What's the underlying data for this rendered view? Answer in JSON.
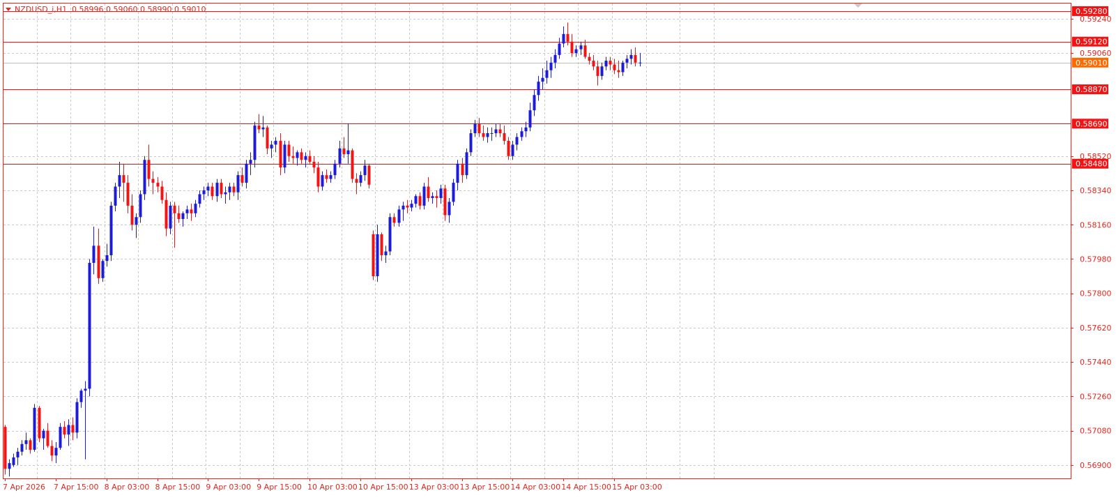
{
  "window": {
    "symbol_label": "NZDUSD_i,H1",
    "ohlc_label": "0.58996 0.59060 0.58990 0.59010"
  },
  "colors": {
    "frame": "#e5271d",
    "grid": "#c8c8c8",
    "bull": "#1c1cd6",
    "bear": "#f21414",
    "axis_text": "#e5271d",
    "price_tag_bg": "#f21414",
    "bid_line": "#bfbfbf",
    "bid_tag_bg": "#ff6a00"
  },
  "chart_data": {
    "type": "candlestick",
    "symbol": "NZDUSD_i",
    "timeframe": "H1",
    "ylim": [
      0.5683,
      0.5932
    ],
    "grid": true,
    "y_tick_labels": [
      "0.59240",
      "0.59060",
      "0.58520",
      "0.58340",
      "0.58160",
      "0.57980",
      "0.57800",
      "0.57620",
      "0.57440",
      "0.57260",
      "0.57080",
      "0.56900"
    ],
    "y_tick_values": [
      0.5924,
      0.5906,
      0.5852,
      0.5834,
      0.5816,
      0.5798,
      0.578,
      0.5762,
      0.5744,
      0.5726,
      0.5708,
      0.569
    ],
    "x_labels": [
      {
        "label": "7 Apr 2026",
        "bar": 0
      },
      {
        "label": "7 Apr 15:00",
        "bar": 12
      },
      {
        "label": "8 Apr 03:00",
        "bar": 24
      },
      {
        "label": "8 Apr 15:00",
        "bar": 36
      },
      {
        "label": "9 Apr 03:00",
        "bar": 48
      },
      {
        "label": "9 Apr 15:00",
        "bar": 60
      },
      {
        "label": "10 Apr 03:00",
        "bar": 72
      },
      {
        "label": "10 Apr 15:00",
        "bar": 84
      },
      {
        "label": "13 Apr 03:00",
        "bar": 96
      },
      {
        "label": "13 Apr 15:00",
        "bar": 108
      },
      {
        "label": "14 Apr 03:00",
        "bar": 120
      },
      {
        "label": "14 Apr 15:00",
        "bar": 132
      },
      {
        "label": "15 Apr 03:00",
        "bar": 144
      }
    ],
    "horizontal_levels": [
      {
        "value": 0.5928,
        "label": "0.59280"
      },
      {
        "value": 0.5912,
        "label": "0.59120"
      },
      {
        "value": 0.5887,
        "label": "0.58870"
      },
      {
        "value": 0.5869,
        "label": "0.58690"
      },
      {
        "value": 0.5848,
        "label": "0.58480"
      }
    ],
    "current_bid": {
      "value": 0.5901,
      "label": "0.59010"
    },
    "candles": [
      [
        0.571,
        0.5711,
        0.5685,
        0.5688
      ],
      [
        0.5688,
        0.5693,
        0.5684,
        0.5691
      ],
      [
        0.569,
        0.5696,
        0.5689,
        0.5694
      ],
      [
        0.5694,
        0.5699,
        0.569,
        0.5697
      ],
      [
        0.5697,
        0.5703,
        0.5695,
        0.5701
      ],
      [
        0.5701,
        0.5707,
        0.5698,
        0.5703
      ],
      [
        0.5703,
        0.5704,
        0.5696,
        0.5698
      ],
      [
        0.5698,
        0.5722,
        0.5697,
        0.572
      ],
      [
        0.572,
        0.5721,
        0.5702,
        0.5704
      ],
      [
        0.5704,
        0.5709,
        0.5698,
        0.5708
      ],
      [
        0.5708,
        0.5712,
        0.5699,
        0.57
      ],
      [
        0.57,
        0.5703,
        0.5692,
        0.5695
      ],
      [
        0.5695,
        0.5702,
        0.5691,
        0.5699
      ],
      [
        0.5699,
        0.5712,
        0.5698,
        0.571
      ],
      [
        0.571,
        0.5713,
        0.5704,
        0.5706
      ],
      [
        0.5706,
        0.5714,
        0.57,
        0.5711
      ],
      [
        0.5711,
        0.5715,
        0.5703,
        0.5707
      ],
      [
        0.5707,
        0.5725,
        0.5704,
        0.5723
      ],
      [
        0.5723,
        0.573,
        0.572,
        0.5729
      ],
      [
        0.5729,
        0.5734,
        0.5693,
        0.573
      ],
      [
        0.573,
        0.5798,
        0.5726,
        0.5796
      ],
      [
        0.5796,
        0.5815,
        0.579,
        0.5805
      ],
      [
        0.5805,
        0.5814,
        0.5785,
        0.5788
      ],
      [
        0.5788,
        0.5798,
        0.5786,
        0.5797
      ],
      [
        0.5797,
        0.5806,
        0.5794,
        0.58
      ],
      [
        0.58,
        0.5828,
        0.5797,
        0.5826
      ],
      [
        0.5826,
        0.5838,
        0.5823,
        0.5836
      ],
      [
        0.5836,
        0.5849,
        0.583,
        0.5842
      ],
      [
        0.5842,
        0.5848,
        0.5828,
        0.5838
      ],
      [
        0.5838,
        0.5842,
        0.5822,
        0.5826
      ],
      [
        0.5826,
        0.5832,
        0.5813,
        0.5816
      ],
      [
        0.5816,
        0.5822,
        0.5809,
        0.582
      ],
      [
        0.582,
        0.5834,
        0.5817,
        0.5832
      ],
      [
        0.5832,
        0.5852,
        0.5829,
        0.585
      ],
      [
        0.585,
        0.5858,
        0.5836,
        0.584
      ],
      [
        0.584,
        0.5844,
        0.5832,
        0.5838
      ],
      [
        0.5838,
        0.5841,
        0.5833,
        0.5836
      ],
      [
        0.5836,
        0.5839,
        0.5827,
        0.5829
      ],
      [
        0.5829,
        0.5833,
        0.581,
        0.5814
      ],
      [
        0.5814,
        0.5828,
        0.5811,
        0.5826
      ],
      [
        0.5826,
        0.5828,
        0.5804,
        0.5822
      ],
      [
        0.5822,
        0.5826,
        0.5817,
        0.5819
      ],
      [
        0.5819,
        0.5823,
        0.5815,
        0.5822
      ],
      [
        0.5822,
        0.5826,
        0.5819,
        0.5824
      ],
      [
        0.5824,
        0.5827,
        0.5818,
        0.5822
      ],
      [
        0.5822,
        0.5829,
        0.582,
        0.5827
      ],
      [
        0.5827,
        0.5834,
        0.5825,
        0.5832
      ],
      [
        0.5832,
        0.5836,
        0.5829,
        0.5834
      ],
      [
        0.5834,
        0.5838,
        0.5831,
        0.5836
      ],
      [
        0.5836,
        0.5838,
        0.5829,
        0.5831
      ],
      [
        0.5831,
        0.584,
        0.5828,
        0.5838
      ],
      [
        0.5838,
        0.584,
        0.583,
        0.5832
      ],
      [
        0.5832,
        0.5836,
        0.5827,
        0.5833
      ],
      [
        0.5833,
        0.5838,
        0.5829,
        0.5836
      ],
      [
        0.5836,
        0.5838,
        0.5831,
        0.5833
      ],
      [
        0.5833,
        0.5844,
        0.5829,
        0.5842
      ],
      [
        0.5842,
        0.5846,
        0.5836,
        0.5838
      ],
      [
        0.5838,
        0.585,
        0.5835,
        0.5848
      ],
      [
        0.5848,
        0.5854,
        0.5842,
        0.585
      ],
      [
        0.585,
        0.587,
        0.5846,
        0.5868
      ],
      [
        0.5868,
        0.5874,
        0.5864,
        0.5866
      ],
      [
        0.5866,
        0.5873,
        0.5862,
        0.5867
      ],
      [
        0.5867,
        0.5868,
        0.5853,
        0.5856
      ],
      [
        0.5856,
        0.586,
        0.5851,
        0.5858
      ],
      [
        0.5858,
        0.5862,
        0.5854,
        0.586
      ],
      [
        0.586,
        0.5864,
        0.5842,
        0.5846
      ],
      [
        0.5846,
        0.586,
        0.5843,
        0.5858
      ],
      [
        0.5858,
        0.586,
        0.5849,
        0.5852
      ],
      [
        0.5852,
        0.5857,
        0.5848,
        0.5851
      ],
      [
        0.5851,
        0.5855,
        0.5847,
        0.5854
      ],
      [
        0.5854,
        0.5856,
        0.5848,
        0.585
      ],
      [
        0.585,
        0.5854,
        0.5846,
        0.5852
      ],
      [
        0.5852,
        0.5855,
        0.5848,
        0.5849
      ],
      [
        0.5849,
        0.5852,
        0.5843,
        0.5846
      ],
      [
        0.5846,
        0.5849,
        0.5833,
        0.5836
      ],
      [
        0.5836,
        0.5844,
        0.5834,
        0.5842
      ],
      [
        0.5842,
        0.5845,
        0.5838,
        0.584
      ],
      [
        0.584,
        0.5844,
        0.5838,
        0.5842
      ],
      [
        0.5842,
        0.585,
        0.584,
        0.5848
      ],
      [
        0.5848,
        0.586,
        0.5846,
        0.5856
      ],
      [
        0.5856,
        0.5862,
        0.5851,
        0.5853
      ],
      [
        0.5853,
        0.5869,
        0.5848,
        0.5855
      ],
      [
        0.5855,
        0.5856,
        0.5838,
        0.584
      ],
      [
        0.584,
        0.5843,
        0.5832,
        0.5838
      ],
      [
        0.5838,
        0.5844,
        0.5836,
        0.5842
      ],
      [
        0.5842,
        0.585,
        0.5839,
        0.5847
      ],
      [
        0.5847,
        0.5848,
        0.5835,
        0.5837
      ],
      [
        0.5811,
        0.5813,
        0.5787,
        0.5789
      ],
      [
        0.5789,
        0.5816,
        0.5786,
        0.5811
      ],
      [
        0.5811,
        0.5812,
        0.5797,
        0.58
      ],
      [
        0.58,
        0.5805,
        0.5796,
        0.5802
      ],
      [
        0.5802,
        0.5822,
        0.58,
        0.582
      ],
      [
        0.582,
        0.5822,
        0.5815,
        0.5817
      ],
      [
        0.5817,
        0.5826,
        0.5815,
        0.5824
      ],
      [
        0.5824,
        0.5828,
        0.5818,
        0.5826
      ],
      [
        0.5826,
        0.5829,
        0.5822,
        0.5825
      ],
      [
        0.5825,
        0.5829,
        0.5823,
        0.5827
      ],
      [
        0.5827,
        0.5832,
        0.5825,
        0.5831
      ],
      [
        0.5831,
        0.5833,
        0.5824,
        0.5826
      ],
      [
        0.5826,
        0.5838,
        0.5824,
        0.5836
      ],
      [
        0.5836,
        0.5841,
        0.5828,
        0.583
      ],
      [
        0.583,
        0.5833,
        0.5827,
        0.5831
      ],
      [
        0.5831,
        0.5834,
        0.5825,
        0.583
      ],
      [
        0.583,
        0.5837,
        0.5827,
        0.5835
      ],
      [
        0.5835,
        0.5837,
        0.5818,
        0.5821
      ],
      [
        0.5821,
        0.583,
        0.5817,
        0.5828
      ],
      [
        0.5828,
        0.584,
        0.5826,
        0.5838
      ],
      [
        0.5838,
        0.585,
        0.5834,
        0.5848
      ],
      [
        0.5848,
        0.5851,
        0.5838,
        0.5842
      ],
      [
        0.5842,
        0.5856,
        0.584,
        0.5854
      ],
      [
        0.5854,
        0.5866,
        0.5852,
        0.5864
      ],
      [
        0.5864,
        0.5871,
        0.5862,
        0.5869
      ],
      [
        0.5869,
        0.5872,
        0.5862,
        0.5864
      ],
      [
        0.5864,
        0.5868,
        0.586,
        0.5862
      ],
      [
        0.5862,
        0.5867,
        0.5859,
        0.5864
      ],
      [
        0.5864,
        0.5867,
        0.586,
        0.5864
      ],
      [
        0.5864,
        0.5869,
        0.5862,
        0.5866
      ],
      [
        0.5866,
        0.5869,
        0.5862,
        0.5864
      ],
      [
        0.5864,
        0.5868,
        0.5858,
        0.586
      ],
      [
        0.586,
        0.5862,
        0.585,
        0.5852
      ],
      [
        0.5852,
        0.586,
        0.585,
        0.5858
      ],
      [
        0.5858,
        0.5864,
        0.5855,
        0.5862
      ],
      [
        0.5862,
        0.5867,
        0.586,
        0.5865
      ],
      [
        0.5865,
        0.587,
        0.5862,
        0.5867
      ],
      [
        0.5867,
        0.588,
        0.5865,
        0.5876
      ],
      [
        0.5876,
        0.5887,
        0.5873,
        0.5884
      ],
      [
        0.5884,
        0.5894,
        0.5881,
        0.5891
      ],
      [
        0.5891,
        0.5898,
        0.5887,
        0.5893
      ],
      [
        0.5893,
        0.5902,
        0.589,
        0.5897
      ],
      [
        0.5897,
        0.5904,
        0.5893,
        0.5901
      ],
      [
        0.5901,
        0.5908,
        0.5898,
        0.5905
      ],
      [
        0.5905,
        0.5914,
        0.5903,
        0.5911
      ],
      [
        0.5911,
        0.592,
        0.5909,
        0.5916
      ],
      [
        0.5916,
        0.5922,
        0.591,
        0.5912
      ],
      [
        0.5912,
        0.5916,
        0.5904,
        0.5906
      ],
      [
        0.5906,
        0.591,
        0.5904,
        0.5908
      ],
      [
        0.5908,
        0.5912,
        0.5905,
        0.591
      ],
      [
        0.591,
        0.5913,
        0.5903,
        0.5904
      ],
      [
        0.5904,
        0.5906,
        0.59,
        0.5902
      ],
      [
        0.5902,
        0.5905,
        0.5897,
        0.5899
      ],
      [
        0.5899,
        0.5902,
        0.5889,
        0.5894
      ],
      [
        0.5894,
        0.5901,
        0.5892,
        0.5899
      ],
      [
        0.5899,
        0.5904,
        0.5897,
        0.5902
      ],
      [
        0.5902,
        0.5904,
        0.5897,
        0.59
      ],
      [
        0.59,
        0.5903,
        0.5895,
        0.5897
      ],
      [
        0.5897,
        0.5902,
        0.5893,
        0.5896
      ],
      [
        0.5896,
        0.5902,
        0.5894,
        0.5901
      ],
      [
        0.5901,
        0.5905,
        0.5898,
        0.5903
      ],
      [
        0.5903,
        0.5908,
        0.59,
        0.5905
      ],
      [
        0.5905,
        0.5909,
        0.5899,
        0.5901
      ],
      [
        0.5901,
        0.5906,
        0.5899,
        0.5901
      ]
    ]
  }
}
